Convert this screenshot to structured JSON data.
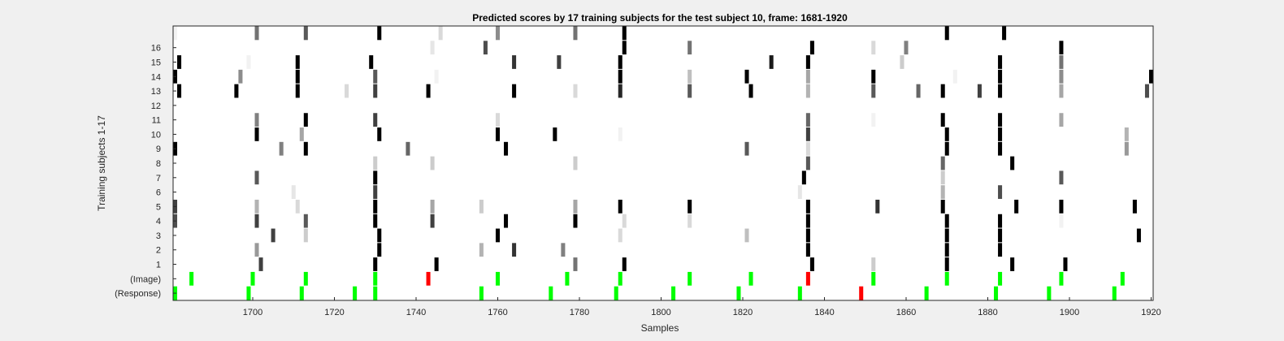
{
  "chart_data": {
    "type": "heatmap",
    "title": "Predicted scores by 17 training subjects for the test subject 10, frame: 1681-1920",
    "xlabel": "Samples",
    "ylabel": "Training subjects 1-17",
    "xlim": [
      1681,
      1920
    ],
    "xticks": [
      1700,
      1720,
      1740,
      1760,
      1780,
      1800,
      1820,
      1840,
      1860,
      1880,
      1900,
      1920
    ],
    "rows": [
      "(Response)",
      "(Image)",
      "1",
      "2",
      "3",
      "4",
      "5",
      "6",
      "7",
      "8",
      "9",
      "10",
      "11",
      "12",
      "13",
      "14",
      "15",
      "16",
      ""
    ],
    "grid": false,
    "colors": {
      "background": "#f0f0f0",
      "plot": "#ffffff",
      "green": "#00ff00",
      "red": "#ff0000"
    },
    "response_events": {
      "green": [
        1681,
        1699,
        1712,
        1725,
        1730,
        1756,
        1773,
        1789,
        1803,
        1819,
        1834,
        1865,
        1882,
        1895,
        1911
      ],
      "red": [
        1849
      ]
    },
    "image_events": {
      "green": [
        1685,
        1700,
        1713,
        1730,
        1760,
        1777,
        1790,
        1807,
        1822,
        1852,
        1870,
        1883,
        1898,
        1913
      ],
      "red": [
        1743,
        1836
      ]
    },
    "subject_scores": [
      {
        "row": "1",
        "points": [
          [
            1702,
            0.75
          ],
          [
            1730,
            1.0
          ],
          [
            1745,
            1.0
          ],
          [
            1779,
            0.55
          ],
          [
            1791,
            1.0
          ],
          [
            1837,
            1.0
          ],
          [
            1852,
            0.2
          ],
          [
            1870,
            1.0
          ],
          [
            1886,
            1.0
          ],
          [
            1899,
            1.0
          ]
        ]
      },
      {
        "row": "2",
        "points": [
          [
            1701,
            0.4
          ],
          [
            1731,
            1.0
          ],
          [
            1756,
            0.3
          ],
          [
            1764,
            0.8
          ],
          [
            1776,
            0.5
          ],
          [
            1836,
            1.0
          ],
          [
            1870,
            1.0
          ],
          [
            1883,
            1.0
          ]
        ]
      },
      {
        "row": "3",
        "points": [
          [
            1705,
            0.75
          ],
          [
            1713,
            0.2
          ],
          [
            1731,
            1.0
          ],
          [
            1760,
            1.0
          ],
          [
            1790,
            0.15
          ],
          [
            1821,
            0.25
          ],
          [
            1836,
            1.0
          ],
          [
            1870,
            1.0
          ],
          [
            1883,
            1.0
          ],
          [
            1917,
            1.0
          ]
        ]
      },
      {
        "row": "4",
        "points": [
          [
            1681,
            0.7
          ],
          [
            1701,
            0.75
          ],
          [
            1713,
            0.65
          ],
          [
            1730,
            1.0
          ],
          [
            1744,
            0.75
          ],
          [
            1762,
            1.0
          ],
          [
            1779,
            1.0
          ],
          [
            1791,
            0.15
          ],
          [
            1807,
            0.15
          ],
          [
            1836,
            1.0
          ],
          [
            1870,
            1.0
          ],
          [
            1883,
            1.0
          ],
          [
            1898,
            0.05
          ]
        ]
      },
      {
        "row": "5",
        "points": [
          [
            1681,
            0.75
          ],
          [
            1701,
            0.3
          ],
          [
            1711,
            0.15
          ],
          [
            1730,
            1.0
          ],
          [
            1744,
            0.35
          ],
          [
            1756,
            0.2
          ],
          [
            1779,
            0.35
          ],
          [
            1790,
            1.0
          ],
          [
            1807,
            1.0
          ],
          [
            1836,
            1.0
          ],
          [
            1853,
            0.8
          ],
          [
            1869,
            1.0
          ],
          [
            1887,
            1.0
          ],
          [
            1898,
            1.0
          ],
          [
            1916,
            1.0
          ]
        ]
      },
      {
        "row": "6",
        "points": [
          [
            1710,
            0.1
          ],
          [
            1730,
            0.75
          ],
          [
            1834,
            0.1
          ],
          [
            1869,
            0.3
          ],
          [
            1883,
            0.7
          ]
        ]
      },
      {
        "row": "7",
        "points": [
          [
            1701,
            0.65
          ],
          [
            1730,
            1.0
          ],
          [
            1835,
            1.0
          ],
          [
            1869,
            0.2
          ],
          [
            1898,
            0.65
          ]
        ]
      },
      {
        "row": "8",
        "points": [
          [
            1730,
            0.2
          ],
          [
            1744,
            0.2
          ],
          [
            1779,
            0.2
          ],
          [
            1836,
            0.65
          ],
          [
            1869,
            0.6
          ],
          [
            1886,
            1.0
          ]
        ]
      },
      {
        "row": "9",
        "points": [
          [
            1681,
            1.0
          ],
          [
            1707,
            0.5
          ],
          [
            1713,
            1.0
          ],
          [
            1738,
            0.6
          ],
          [
            1762,
            1.0
          ],
          [
            1821,
            0.65
          ],
          [
            1836,
            0.15
          ],
          [
            1870,
            1.0
          ],
          [
            1883,
            1.0
          ],
          [
            1914,
            0.4
          ]
        ]
      },
      {
        "row": "10",
        "points": [
          [
            1701,
            1.0
          ],
          [
            1712,
            0.35
          ],
          [
            1731,
            1.0
          ],
          [
            1760,
            1.0
          ],
          [
            1774,
            1.0
          ],
          [
            1790,
            0.05
          ],
          [
            1836,
            0.75
          ],
          [
            1870,
            1.0
          ],
          [
            1883,
            1.0
          ],
          [
            1914,
            0.3
          ]
        ]
      },
      {
        "row": "11",
        "points": [
          [
            1701,
            0.5
          ],
          [
            1713,
            1.0
          ],
          [
            1730,
            0.75
          ],
          [
            1760,
            0.15
          ],
          [
            1836,
            0.6
          ],
          [
            1852,
            0.05
          ],
          [
            1869,
            1.0
          ],
          [
            1883,
            1.0
          ],
          [
            1898,
            0.35
          ]
        ]
      },
      {
        "row": "13",
        "points": [
          [
            1682,
            1.0
          ],
          [
            1696,
            1.0
          ],
          [
            1711,
            1.0
          ],
          [
            1723,
            0.15
          ],
          [
            1730,
            0.75
          ],
          [
            1743,
            1.0
          ],
          [
            1764,
            1.0
          ],
          [
            1779,
            0.15
          ],
          [
            1790,
            0.85
          ],
          [
            1807,
            0.65
          ],
          [
            1822,
            1.0
          ],
          [
            1836,
            0.3
          ],
          [
            1852,
            0.65
          ],
          [
            1863,
            0.6
          ],
          [
            1869,
            1.0
          ],
          [
            1878,
            0.75
          ],
          [
            1883,
            1.0
          ],
          [
            1898,
            0.35
          ],
          [
            1919,
            0.7
          ]
        ]
      },
      {
        "row": "14",
        "points": [
          [
            1681,
            1.0
          ],
          [
            1697,
            0.45
          ],
          [
            1711,
            1.0
          ],
          [
            1730,
            0.65
          ],
          [
            1745,
            0.05
          ],
          [
            1790,
            1.0
          ],
          [
            1807,
            0.25
          ],
          [
            1821,
            1.0
          ],
          [
            1836,
            0.35
          ],
          [
            1852,
            1.0
          ],
          [
            1872,
            0.05
          ],
          [
            1883,
            1.0
          ],
          [
            1898,
            0.45
          ],
          [
            1920,
            1.0
          ]
        ]
      },
      {
        "row": "15",
        "points": [
          [
            1682,
            1.0
          ],
          [
            1699,
            0.05
          ],
          [
            1711,
            1.0
          ],
          [
            1729,
            1.0
          ],
          [
            1764,
            0.8
          ],
          [
            1775,
            0.75
          ],
          [
            1790,
            1.0
          ],
          [
            1827,
            0.9
          ],
          [
            1836,
            1.0
          ],
          [
            1859,
            0.2
          ],
          [
            1883,
            1.0
          ],
          [
            1898,
            0.55
          ]
        ]
      },
      {
        "row": "16",
        "points": [
          [
            1744,
            0.1
          ],
          [
            1757,
            0.7
          ],
          [
            1791,
            1.0
          ],
          [
            1807,
            0.55
          ],
          [
            1837,
            1.0
          ],
          [
            1852,
            0.15
          ],
          [
            1860,
            0.5
          ],
          [
            1898,
            1.0
          ]
        ]
      },
      {
        "row": "",
        "points": [
          [
            1681,
            0.05
          ],
          [
            1701,
            0.55
          ],
          [
            1713,
            0.65
          ],
          [
            1731,
            1.0
          ],
          [
            1746,
            0.15
          ],
          [
            1760,
            0.45
          ],
          [
            1779,
            0.55
          ],
          [
            1791,
            1.0
          ],
          [
            1870,
            1.0
          ],
          [
            1884,
            1.0
          ]
        ]
      }
    ]
  }
}
